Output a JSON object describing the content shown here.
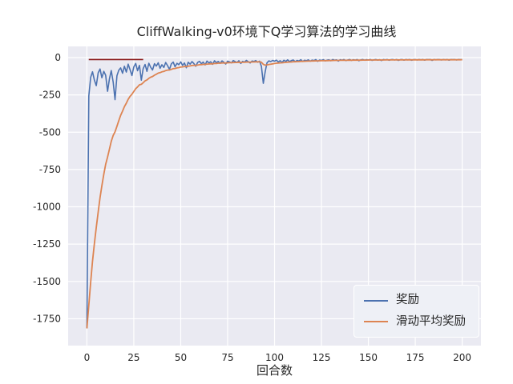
{
  "figure": {
    "title": "CliffWalking-v0环境下Q学习算法的学习曲线",
    "xlabel": "回合数"
  },
  "legend": {
    "items": [
      {
        "label": "奖励",
        "color": "#4c72b0"
      },
      {
        "label": "滑动平均奖励",
        "color": "#dd8452"
      }
    ]
  },
  "chart_data": {
    "type": "line",
    "title": "CliffWalking-v0环境下Q学习算法的学习曲线",
    "xlabel": "回合数",
    "ylabel": "",
    "grid": true,
    "background": "#eaeaf2",
    "grid_color": "#ffffff",
    "tick_color": "#262626",
    "legend_position": "lower right",
    "xlim": [
      -10,
      210
    ],
    "ylim": [
      -1930,
      75
    ],
    "xticks": [
      0,
      25,
      50,
      75,
      100,
      125,
      150,
      175,
      200
    ],
    "yticks": [
      0,
      -250,
      -500,
      -750,
      -1000,
      -1250,
      -1500,
      -1750
    ],
    "annotations": [
      {
        "type": "hline_segment",
        "y": -13,
        "x0": 1,
        "x1": 30,
        "color": "#8b1a1a"
      }
    ],
    "series": [
      {
        "name": "奖励",
        "color": "#4c72b0",
        "x_start": 0,
        "x_step": 1,
        "values": [
          -1815,
          -258,
          -133,
          -95,
          -152,
          -188,
          -102,
          -76,
          -135,
          -92,
          -118,
          -226,
          -143,
          -87,
          -164,
          -282,
          -121,
          -84,
          -69,
          -105,
          -58,
          -97,
          -44,
          -82,
          -120,
          -63,
          -39,
          -88,
          -52,
          -151,
          -74,
          -46,
          -92,
          -38,
          -65,
          -83,
          -41,
          -57,
          -35,
          -72,
          -48,
          -66,
          -33,
          -54,
          -79,
          -42,
          -30,
          -61,
          -38,
          -47,
          -29,
          -52,
          -36,
          -68,
          -31,
          -44,
          -27,
          -39,
          -58,
          -33,
          -25,
          -41,
          -30,
          -49,
          -23,
          -36,
          -28,
          -45,
          -21,
          -34,
          -26,
          -38,
          -22,
          -31,
          -43,
          -24,
          -29,
          -35,
          -20,
          -27,
          -33,
          -21,
          -39,
          -25,
          -30,
          -19,
          -28,
          -36,
          -23,
          -26,
          -20,
          -31,
          -24,
          -58,
          -172,
          -96,
          -35,
          -22,
          -27,
          -19,
          -24,
          -17,
          -29,
          -21,
          -33,
          -18,
          -25,
          -15,
          -27,
          -20,
          -16,
          -28,
          -19,
          -23,
          -14,
          -26,
          -18,
          -21,
          -15,
          -24,
          -17,
          -20,
          -13,
          -25,
          -16,
          -19,
          -14,
          -22,
          -17,
          -15,
          -21,
          -13,
          -18,
          -15,
          -23,
          -14,
          -17,
          -13,
          -20,
          -16,
          -13,
          -19,
          -14,
          -17,
          -13,
          -21,
          -15,
          -13,
          -18,
          -14,
          -16,
          -13,
          -19,
          -15,
          -13,
          -17,
          -14,
          -20,
          -13,
          -15,
          -13,
          -18,
          -14,
          -13,
          -16,
          -13,
          -19,
          -14,
          -13,
          -17,
          -13,
          -15,
          -13,
          -18,
          -14,
          -13,
          -16,
          -13,
          -15,
          -13,
          -17,
          -13,
          -14,
          -13,
          -19,
          -13,
          -15,
          -13,
          -14,
          -16,
          -13,
          -15,
          -13,
          -17,
          -13,
          -14,
          -13,
          -16,
          -13,
          -14,
          -13
        ]
      },
      {
        "name": "滑动平均奖励",
        "color": "#dd8452",
        "derived": "ema_of_series_0",
        "smoothing": 0.9
      }
    ]
  }
}
